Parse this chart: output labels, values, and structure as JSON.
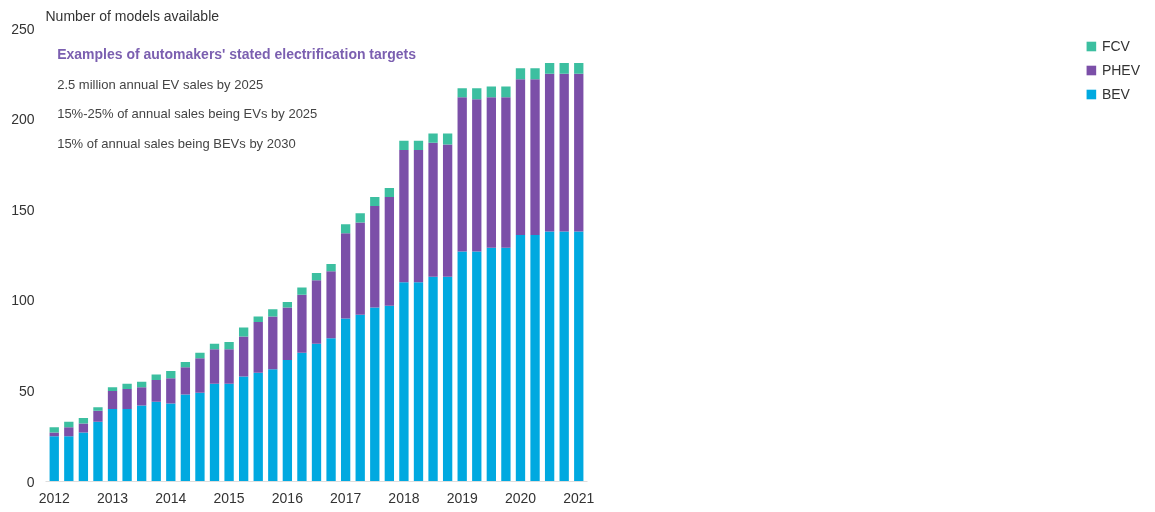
{
  "chart_data": {
    "type": "bar",
    "stacked": true,
    "ylabel": "Number of models available",
    "annotations": [
      "Examples of automakers' stated electrification targets",
      "2.5 million annual EV sales by 2025",
      "15%-25% of annual sales being EVs by 2025",
      "15% of annual sales being BEVs by 2030"
    ],
    "x": [
      2012,
      2012.25,
      2012.5,
      2012.75,
      2013,
      2013.25,
      2013.5,
      2013.75,
      2014,
      2014.25,
      2014.5,
      2014.75,
      2015,
      2015.25,
      2015.5,
      2015.75,
      2016,
      2016.25,
      2016.5,
      2016.75,
      2017,
      2017.25,
      2017.5,
      2017.75,
      2018,
      2018.25,
      2018.5,
      2018.75,
      2019,
      2019.25,
      2019.5,
      2019.75,
      2020,
      2020.25,
      2020.5,
      2020.75,
      2021
    ],
    "series": [
      {
        "name": "BEV",
        "color": "#00a9e0",
        "values": [
          25,
          25,
          27,
          33,
          40,
          40,
          42,
          44,
          43,
          48,
          49,
          54,
          54,
          58,
          60,
          62,
          67,
          71,
          76,
          79,
          90,
          92,
          96,
          97,
          110,
          110,
          113,
          113,
          127,
          127,
          129,
          129,
          136,
          136,
          138,
          138,
          138
        ]
      },
      {
        "name": "PHEV",
        "color": "#7b4fa8",
        "values": [
          2,
          5,
          5,
          6,
          10,
          11,
          10,
          12,
          14,
          15,
          19,
          19,
          19,
          22,
          28,
          29,
          29,
          32,
          35,
          37,
          47,
          51,
          56,
          60,
          73,
          73,
          74,
          73,
          85,
          84,
          83,
          83,
          86,
          86,
          87,
          87,
          87
        ]
      },
      {
        "name": "FCV",
        "color": "#3cbfa0",
        "values": [
          3,
          3,
          3,
          2,
          2,
          3,
          3,
          3,
          4,
          3,
          3,
          3,
          4,
          5,
          3,
          4,
          3,
          4,
          4,
          4,
          5,
          5,
          5,
          5,
          5,
          5,
          5,
          6,
          5,
          6,
          6,
          6,
          6,
          6,
          6,
          6,
          6
        ]
      }
    ],
    "xlim": [
      2011.85,
      2021.15
    ],
    "ylim": [
      0,
      250
    ],
    "xticks": [
      2012,
      2013,
      2014,
      2015,
      2016,
      2017,
      2018,
      2019,
      2020,
      2021
    ],
    "yticks": [
      0,
      50,
      100,
      150,
      200,
      250
    ],
    "grid": false,
    "legend": "right"
  }
}
